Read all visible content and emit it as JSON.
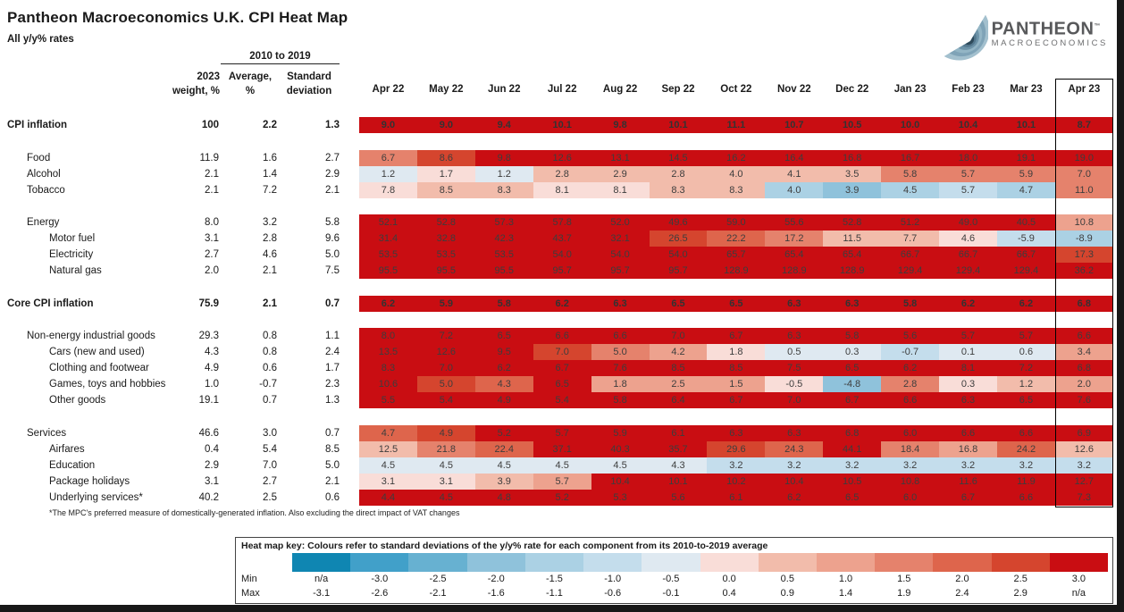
{
  "header": {
    "title": "Pantheon Macroeconomics U.K. CPI Heat Map",
    "subtitle": "All y/y% rates"
  },
  "logo": {
    "brand": "PANTHEON",
    "tm": "TM",
    "sub": "MACROECONOMICS"
  },
  "columns": {
    "group_label": "2010 to 2019",
    "weight_line1": "2023",
    "weight_line2": "weight, %",
    "avg_line1": "Average,",
    "avg_line2": "%",
    "sd_line1": "Standard",
    "sd_line2": "deviation"
  },
  "footnote": "*The MPC's preferred measure of domestically-generated inflation. Also excluding the direct impact of VAT changes",
  "colors": {
    "scale": [
      "#0f86b2",
      "#41a0c9",
      "#67b1d1",
      "#8fc2db",
      "#abd1e4",
      "#c4ddec",
      "#dfe9f1",
      "#f9ddd8",
      "#f2bcab",
      "#eda28e",
      "#e5826c",
      "#de654c",
      "#d5452e",
      "#c90d12"
    ],
    "bin_thresholds": [
      -3.05,
      -2.55,
      -2.05,
      -1.55,
      -1.05,
      -0.55,
      -0.05,
      0.45,
      0.95,
      1.45,
      1.95,
      2.45,
      2.95
    ]
  },
  "key": {
    "title": "Heat map key: Colours refer to standard deviations of the y/y% rate for each component from its 2010-to-2019 average",
    "min_label": "Min",
    "max_label": "Max",
    "min": [
      "n/a",
      "-3.0",
      "-2.5",
      "-2.0",
      "-1.5",
      "-1.0",
      "-0.5",
      "0.0",
      "0.5",
      "1.0",
      "1.5",
      "2.0",
      "2.5",
      "3.0"
    ],
    "max": [
      "-3.1",
      "-2.6",
      "-2.1",
      "-1.6",
      "-1.1",
      "-0.6",
      "-0.1",
      "0.4",
      "0.9",
      "1.4",
      "1.9",
      "2.4",
      "2.9",
      "n/a"
    ]
  },
  "chart_data": {
    "type": "heatmap",
    "title": "Pantheon Macroeconomics U.K. CPI Heat Map",
    "subtitle": "All y/y% rates",
    "months": [
      "Apr 22",
      "May 22",
      "Jun 22",
      "Jul 22",
      "Aug 22",
      "Sep 22",
      "Oct 22",
      "Nov 22",
      "Dec 22",
      "Jan 23",
      "Feb 23",
      "Mar 23",
      "Apr 23"
    ],
    "highlighted_month": "Apr 23",
    "rows": [
      {
        "label": "CPI inflation",
        "level": 0,
        "bold": true,
        "gap_before": false,
        "weight": "100",
        "average": "2.2",
        "stdev": "1.3",
        "values": [
          9.0,
          9.0,
          9.4,
          10.1,
          9.8,
          10.1,
          11.1,
          10.7,
          10.5,
          10.0,
          10.4,
          10.1,
          8.7
        ]
      },
      {
        "label": "Food",
        "level": 1,
        "bold": false,
        "gap_before": true,
        "weight": "11.9",
        "average": "1.6",
        "stdev": "2.7",
        "values": [
          6.7,
          8.6,
          9.8,
          12.6,
          13.1,
          14.5,
          16.2,
          16.4,
          16.8,
          16.7,
          18.0,
          19.1,
          19.0
        ]
      },
      {
        "label": "Alcohol",
        "level": 1,
        "bold": false,
        "gap_before": false,
        "weight": "2.1",
        "average": "1.4",
        "stdev": "2.9",
        "values": [
          1.2,
          1.7,
          1.2,
          2.8,
          2.9,
          2.8,
          4.0,
          4.1,
          3.5,
          5.8,
          5.7,
          5.9,
          7.0
        ]
      },
      {
        "label": "Tobacco",
        "level": 1,
        "bold": false,
        "gap_before": false,
        "weight": "2.1",
        "average": "7.2",
        "stdev": "2.1",
        "values": [
          7.8,
          8.5,
          8.3,
          8.1,
          8.1,
          8.3,
          8.3,
          4.0,
          3.9,
          4.5,
          5.7,
          4.7,
          11.0
        ]
      },
      {
        "label": "Energy",
        "level": 1,
        "bold": false,
        "gap_before": true,
        "weight": "8.0",
        "average": "3.2",
        "stdev": "5.8",
        "values": [
          52.1,
          52.8,
          57.3,
          57.8,
          52.0,
          49.6,
          59.0,
          55.6,
          52.8,
          51.2,
          49.0,
          40.5,
          10.8
        ]
      },
      {
        "label": "Motor fuel",
        "level": 2,
        "bold": false,
        "gap_before": false,
        "weight": "3.1",
        "average": "2.8",
        "stdev": "9.6",
        "values": [
          31.4,
          32.8,
          42.3,
          43.7,
          32.1,
          26.5,
          22.2,
          17.2,
          11.5,
          7.7,
          4.6,
          -5.9,
          -8.9
        ]
      },
      {
        "label": "Electricity",
        "level": 2,
        "bold": false,
        "gap_before": false,
        "weight": "2.7",
        "average": "4.6",
        "stdev": "5.0",
        "values": [
          53.5,
          53.5,
          53.5,
          54.0,
          54.0,
          54.0,
          65.7,
          65.4,
          65.4,
          66.7,
          66.7,
          66.7,
          17.3
        ]
      },
      {
        "label": "Natural gas",
        "level": 2,
        "bold": false,
        "gap_before": false,
        "weight": "2.0",
        "average": "2.1",
        "stdev": "7.5",
        "values": [
          95.5,
          95.5,
          95.5,
          95.7,
          95.7,
          95.7,
          128.9,
          128.9,
          128.9,
          129.4,
          129.4,
          129.4,
          36.2
        ]
      },
      {
        "label": "Core CPI inflation",
        "level": 0,
        "bold": true,
        "gap_before": true,
        "weight": "75.9",
        "average": "2.1",
        "stdev": "0.7",
        "values": [
          6.2,
          5.9,
          5.8,
          6.2,
          6.3,
          6.5,
          6.5,
          6.3,
          6.3,
          5.8,
          6.2,
          6.2,
          6.8
        ]
      },
      {
        "label": "Non-energy industrial goods",
        "level": 1,
        "bold": false,
        "gap_before": true,
        "weight": "29.3",
        "average": "0.8",
        "stdev": "1.1",
        "values": [
          8.0,
          7.2,
          6.5,
          6.6,
          6.6,
          7.0,
          6.7,
          6.3,
          5.8,
          5.6,
          5.7,
          5.7,
          6.6
        ]
      },
      {
        "label": "Cars (new and used)",
        "level": 2,
        "bold": false,
        "gap_before": false,
        "weight": "4.3",
        "average": "0.8",
        "stdev": "2.4",
        "values": [
          13.5,
          12.6,
          9.5,
          7.0,
          5.0,
          4.2,
          1.8,
          0.5,
          0.3,
          -0.7,
          0.1,
          0.6,
          3.4
        ]
      },
      {
        "label": "Clothing and footwear",
        "level": 2,
        "bold": false,
        "gap_before": false,
        "weight": "4.9",
        "average": "0.6",
        "stdev": "1.7",
        "values": [
          8.3,
          7.0,
          6.2,
          6.7,
          7.6,
          8.5,
          8.5,
          7.5,
          6.5,
          6.2,
          8.1,
          7.2,
          6.8
        ]
      },
      {
        "label": "Games, toys and hobbies",
        "level": 2,
        "bold": false,
        "gap_before": false,
        "weight": "1.0",
        "average": "-0.7",
        "stdev": "2.3",
        "values": [
          10.6,
          5.0,
          4.3,
          6.5,
          1.8,
          2.5,
          1.5,
          -0.5,
          -4.8,
          2.8,
          0.3,
          1.2,
          2.0
        ]
      },
      {
        "label": "Other goods",
        "level": 2,
        "bold": false,
        "gap_before": false,
        "weight": "19.1",
        "average": "0.7",
        "stdev": "1.3",
        "values": [
          5.5,
          5.4,
          4.9,
          5.4,
          5.8,
          6.4,
          6.7,
          7.0,
          6.7,
          6.6,
          6.3,
          6.5,
          7.6
        ]
      },
      {
        "label": "Services",
        "level": 1,
        "bold": false,
        "gap_before": true,
        "weight": "46.6",
        "average": "3.0",
        "stdev": "0.7",
        "values": [
          4.7,
          4.9,
          5.2,
          5.7,
          5.9,
          6.1,
          6.3,
          6.3,
          6.8,
          6.0,
          6.6,
          6.6,
          6.9
        ]
      },
      {
        "label": "Airfares",
        "level": 2,
        "bold": false,
        "gap_before": false,
        "weight": "0.4",
        "average": "5.4",
        "stdev": "8.5",
        "values": [
          12.5,
          21.8,
          22.4,
          37.1,
          40.3,
          35.7,
          29.6,
          24.3,
          44.1,
          18.4,
          16.8,
          24.2,
          12.6
        ]
      },
      {
        "label": "Education",
        "level": 2,
        "bold": false,
        "gap_before": false,
        "weight": "2.9",
        "average": "7.0",
        "stdev": "5.0",
        "values": [
          4.5,
          4.5,
          4.5,
          4.5,
          4.5,
          4.3,
          3.2,
          3.2,
          3.2,
          3.2,
          3.2,
          3.2,
          3.2
        ]
      },
      {
        "label": "Package holidays",
        "level": 2,
        "bold": false,
        "gap_before": false,
        "weight": "3.1",
        "average": "2.7",
        "stdev": "2.1",
        "values": [
          3.1,
          3.1,
          3.9,
          5.7,
          10.4,
          10.1,
          10.2,
          10.4,
          10.5,
          10.8,
          11.6,
          11.9,
          12.7
        ]
      },
      {
        "label": "Underlying services*",
        "level": 2,
        "bold": false,
        "gap_before": false,
        "weight": "40.2",
        "average": "2.5",
        "stdev": "0.6",
        "values": [
          4.4,
          4.5,
          4.8,
          5.2,
          5.3,
          5.6,
          6.1,
          6.2,
          6.5,
          6.0,
          6.7,
          6.6,
          7.3
        ]
      }
    ]
  }
}
